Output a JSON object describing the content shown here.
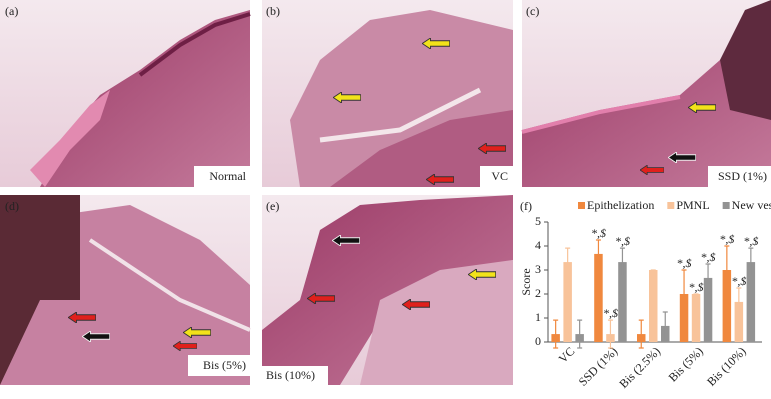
{
  "panels": [
    {
      "letter": "(a)",
      "caption": "Normal"
    },
    {
      "letter": "(b)",
      "caption": "VC"
    },
    {
      "letter": "(c)",
      "caption": "SSD (1%)"
    },
    {
      "letter": "(d)",
      "caption": "Bis (5%)"
    },
    {
      "letter": "(e)",
      "caption": "Bis (10%)"
    }
  ],
  "chart_data": {
    "type": "bar",
    "letter": "(f)",
    "y_label": "Score",
    "categories": [
      "VC",
      "SSD (1%)",
      "Bis (2.5%)",
      "Bis (5%)",
      "Bis (10%)"
    ],
    "series": [
      {
        "name": "Epithelization",
        "color": "#f0883e",
        "values": [
          0.33,
          3.67,
          0.33,
          2,
          3
        ],
        "errors": [
          0.58,
          0.58,
          0.58,
          1,
          1
        ],
        "annotations": [
          null,
          "*,$",
          null,
          "*,$",
          "*,$"
        ]
      },
      {
        "name": "PMNL",
        "color": "#f8c39a",
        "values": [
          3.33,
          0.33,
          3,
          2,
          1.67
        ],
        "errors": [
          0.58,
          0.58,
          0,
          0,
          0.58
        ],
        "annotations": [
          null,
          "*,$",
          null,
          "*,$",
          "*,$"
        ]
      },
      {
        "name": "New vessels",
        "color": "#939393",
        "values": [
          0.33,
          3.33,
          0.67,
          2.67,
          3.33
        ],
        "errors": [
          0.58,
          0.58,
          0.58,
          0.58,
          0.58
        ],
        "annotations": [
          null,
          "*,$",
          null,
          "*,$",
          "*,$"
        ]
      }
    ],
    "ylim": [
      0,
      5
    ],
    "yticks": [
      0,
      1,
      2,
      3,
      4,
      5
    ],
    "legend": "top"
  }
}
